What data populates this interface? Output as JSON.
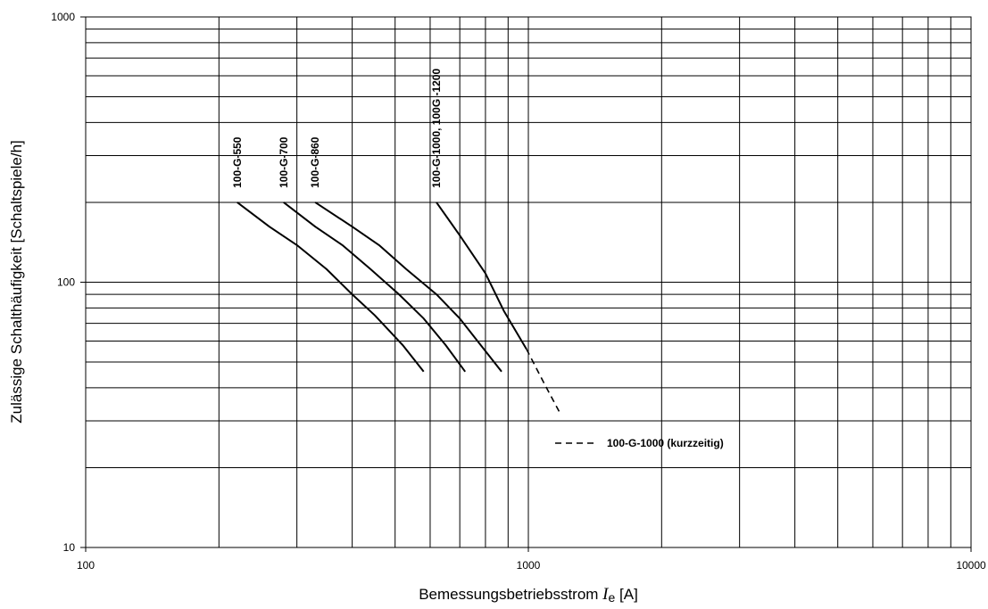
{
  "chart_data": {
    "type": "line",
    "xscale": "log",
    "yscale": "log",
    "xlim": [
      100,
      10000
    ],
    "ylim": [
      10,
      1000
    ],
    "grid": true,
    "xlabel_prefix": "Bemessungsbetriebsstrom ",
    "xlabel_symbol": "I",
    "xlabel_subscript": "e",
    "xlabel_suffix": " [A]",
    "ylabel": "Zulässige Schalthäufigkeit [Schaltspiele/h]",
    "xticks": [
      "100",
      "1000",
      "10000"
    ],
    "yticks": [
      "10",
      "100",
      "1000"
    ],
    "series": [
      {
        "name": "100-G-550",
        "style": "solid",
        "points": [
          [
            220,
            200
          ],
          [
            260,
            162
          ],
          [
            300,
            138
          ],
          [
            350,
            112
          ],
          [
            400,
            90
          ],
          [
            450,
            75
          ],
          [
            520,
            58
          ],
          [
            580,
            46
          ]
        ]
      },
      {
        "name": "100-G-700",
        "style": "solid",
        "points": [
          [
            280,
            200
          ],
          [
            330,
            162
          ],
          [
            380,
            138
          ],
          [
            440,
            112
          ],
          [
            510,
            90
          ],
          [
            580,
            73
          ],
          [
            650,
            58
          ],
          [
            720,
            46
          ]
        ]
      },
      {
        "name": "100-G-860",
        "style": "solid",
        "points": [
          [
            330,
            200
          ],
          [
            400,
            162
          ],
          [
            460,
            138
          ],
          [
            530,
            112
          ],
          [
            620,
            90
          ],
          [
            700,
            73
          ],
          [
            780,
            58
          ],
          [
            870,
            46
          ]
        ]
      },
      {
        "name": "100-G-1000, 100G -1200",
        "style": "solid",
        "points": [
          [
            620,
            200
          ],
          [
            700,
            150
          ],
          [
            800,
            108
          ],
          [
            880,
            78
          ],
          [
            990,
            56
          ]
        ]
      },
      {
        "name": "100-G-1000 (kurzzeitig)",
        "style": "dashed",
        "points": [
          [
            990,
            56
          ],
          [
            1090,
            41
          ],
          [
            1180,
            32
          ]
        ]
      }
    ],
    "legend": {
      "position": "lower-center",
      "entries": [
        {
          "label": "100-G-1000 (kurzzeitig)",
          "style": "dashed"
        }
      ]
    }
  }
}
